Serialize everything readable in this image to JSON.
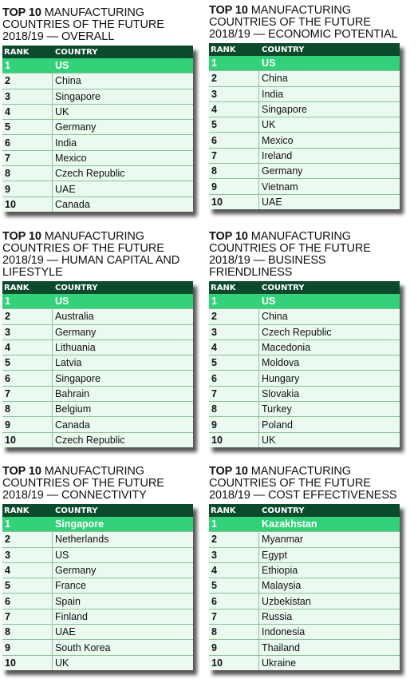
{
  "panels": [
    {
      "title_lead": "TOP 10",
      "title_rest": " MANUFACTURING COUNTRIES OF THE FUTURE 2018/19 — OVERALL",
      "header": {
        "rank": "RANK",
        "country": "COUNTRY"
      },
      "rows": [
        {
          "rank": "1",
          "country": "US"
        },
        {
          "rank": "2",
          "country": "China"
        },
        {
          "rank": "3",
          "country": "Singapore"
        },
        {
          "rank": "4",
          "country": "UK"
        },
        {
          "rank": "5",
          "country": "Germany"
        },
        {
          "rank": "6",
          "country": "India"
        },
        {
          "rank": "7",
          "country": "Mexico"
        },
        {
          "rank": "8",
          "country": "Czech Republic"
        },
        {
          "rank": "9",
          "country": "UAE"
        },
        {
          "rank": "10",
          "country": "Canada"
        }
      ]
    },
    {
      "title_lead": "TOP 10",
      "title_rest": " MANUFACTURING COUNTRIES OF THE FUTURE 2018/19 — ECONOMIC POTENTIAL",
      "header": {
        "rank": "RANK",
        "country": "COUNTRY"
      },
      "rows": [
        {
          "rank": "1",
          "country": "US"
        },
        {
          "rank": "2",
          "country": "China"
        },
        {
          "rank": "3",
          "country": "India"
        },
        {
          "rank": "4",
          "country": "Singapore"
        },
        {
          "rank": "5",
          "country": "UK"
        },
        {
          "rank": "6",
          "country": "Mexico"
        },
        {
          "rank": "7",
          "country": "Ireland"
        },
        {
          "rank": "8",
          "country": "Germany"
        },
        {
          "rank": "9",
          "country": "Vietnam"
        },
        {
          "rank": "10",
          "country": "UAE"
        }
      ]
    },
    {
      "title_lead": "TOP 10",
      "title_rest": " MANUFACTURING COUNTRIES OF THE FUTURE 2018/19 — HUMAN CAPITAL AND LIFESTYLE",
      "header": {
        "rank": "RANK",
        "country": "COUNTRY"
      },
      "rows": [
        {
          "rank": "1",
          "country": "US"
        },
        {
          "rank": "2",
          "country": "Australia"
        },
        {
          "rank": "3",
          "country": "Germany"
        },
        {
          "rank": "4",
          "country": "Lithuania"
        },
        {
          "rank": "5",
          "country": "Latvia"
        },
        {
          "rank": "6",
          "country": "Singapore"
        },
        {
          "rank": "7",
          "country": "Bahrain"
        },
        {
          "rank": "8",
          "country": "Belgium"
        },
        {
          "rank": "9",
          "country": "Canada"
        },
        {
          "rank": "10",
          "country": "Czech Republic"
        }
      ]
    },
    {
      "title_lead": "TOP 10",
      "title_rest": " MANUFACTURING COUNTRIES OF THE FUTURE 2018/19 — BUSINESS FRIENDLINESS",
      "header": {
        "rank": "RANK",
        "country": "COUNTRY"
      },
      "rows": [
        {
          "rank": "1",
          "country": "US"
        },
        {
          "rank": "2",
          "country": "China"
        },
        {
          "rank": "3",
          "country": "Czech Republic"
        },
        {
          "rank": "4",
          "country": "Macedonia"
        },
        {
          "rank": "5",
          "country": "Moldova"
        },
        {
          "rank": "6",
          "country": "Hungary"
        },
        {
          "rank": "7",
          "country": "Slovakia"
        },
        {
          "rank": "8",
          "country": "Turkey"
        },
        {
          "rank": "9",
          "country": "Poland"
        },
        {
          "rank": "10",
          "country": "UK"
        }
      ]
    },
    {
      "title_lead": "TOP 10",
      "title_rest": " MANUFACTURING COUNTRIES OF THE FUTURE 2018/19 — CONNECTIVITY",
      "header": {
        "rank": "RANK",
        "country": "COUNTRY"
      },
      "rows": [
        {
          "rank": "1",
          "country": "Singapore"
        },
        {
          "rank": "2",
          "country": "Netherlands"
        },
        {
          "rank": "3",
          "country": "US"
        },
        {
          "rank": "4",
          "country": "Germany"
        },
        {
          "rank": "5",
          "country": "France"
        },
        {
          "rank": "6",
          "country": "Spain"
        },
        {
          "rank": "7",
          "country": "Finland"
        },
        {
          "rank": "8",
          "country": "UAE"
        },
        {
          "rank": "9",
          "country": "South Korea"
        },
        {
          "rank": "10",
          "country": "UK"
        }
      ]
    },
    {
      "title_lead": "TOP 10",
      "title_rest": " MANUFACTURING COUNTRIES OF THE FUTURE 2018/19 — COST EFFECTIVENESS",
      "header": {
        "rank": "RANK",
        "country": "COUNTRY"
      },
      "rows": [
        {
          "rank": "1",
          "country": "Kazakhstan"
        },
        {
          "rank": "2",
          "country": "Myanmar"
        },
        {
          "rank": "3",
          "country": "Egypt"
        },
        {
          "rank": "4",
          "country": "Ethiopia"
        },
        {
          "rank": "5",
          "country": "Malaysia"
        },
        {
          "rank": "6",
          "country": "Uzbekistan"
        },
        {
          "rank": "7",
          "country": "Russia"
        },
        {
          "rank": "8",
          "country": "Indonesia"
        },
        {
          "rank": "9",
          "country": "Thailand"
        },
        {
          "rank": "10",
          "country": "Ukraine"
        }
      ]
    }
  ],
  "colors": {
    "header_bg": "#0c4a2c",
    "top_row_bg": "#33d17a",
    "row_bg": "#eafaee",
    "shadow": "#1e1e1e"
  }
}
